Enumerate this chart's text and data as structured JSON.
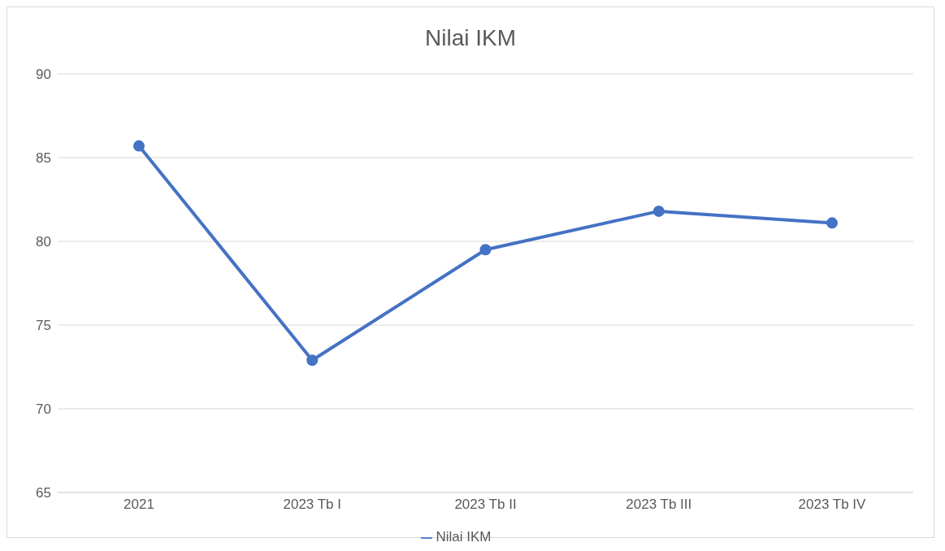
{
  "chart_data": {
    "type": "line",
    "title": "Nilai IKM",
    "categories": [
      "2021",
      "2023 Tb I",
      "2023 Tb II",
      "2023 Tb III",
      "2023 Tb IV"
    ],
    "series": [
      {
        "name": "Nilai IKM",
        "color": "#4472c4",
        "values": [
          85.7,
          72.9,
          79.5,
          81.8,
          81.1
        ]
      }
    ],
    "ylim": [
      65,
      90
    ],
    "yticks": [
      65,
      70,
      75,
      80,
      85,
      90
    ],
    "grid": "y",
    "legend": "bottom",
    "marker": "circle",
    "line_style": "solid"
  }
}
